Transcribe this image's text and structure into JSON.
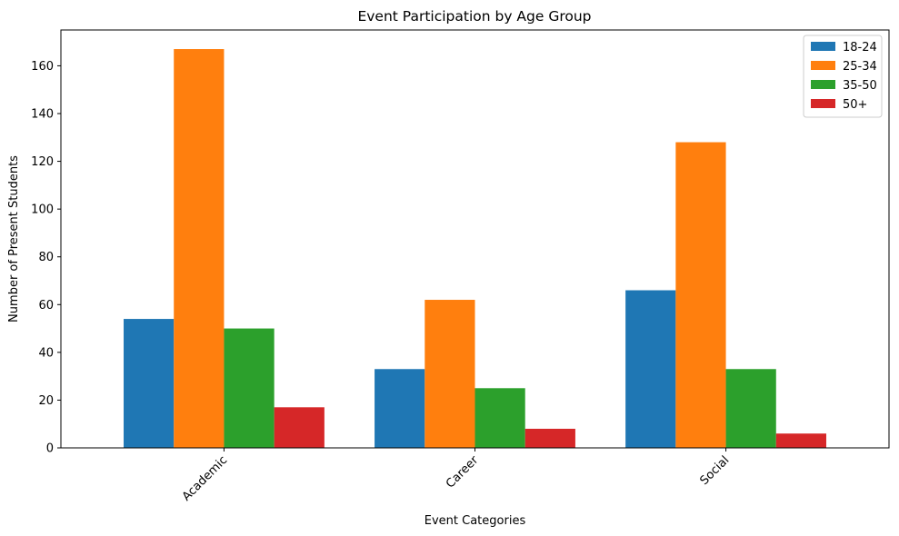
{
  "chart_data": {
    "type": "bar",
    "title": "Event Participation by Age Group",
    "xlabel": "Event Categories",
    "ylabel": "Number of Present Students",
    "categories": [
      "Academic",
      "Career",
      "Social"
    ],
    "series": [
      {
        "name": "18-24",
        "color": "#1f77b4",
        "values": [
          54,
          33,
          66
        ]
      },
      {
        "name": "25-34",
        "color": "#ff7f0e",
        "values": [
          167,
          62,
          128
        ]
      },
      {
        "name": "35-50",
        "color": "#2ca02c",
        "values": [
          50,
          25,
          33
        ]
      },
      {
        "name": "50+",
        "color": "#d62728",
        "values": [
          17,
          8,
          6
        ]
      }
    ],
    "ylim": [
      0,
      175
    ],
    "yticks": [
      0,
      20,
      40,
      60,
      80,
      100,
      120,
      140,
      160
    ],
    "grid": false,
    "legend_position": "top-right",
    "xtick_rotation_deg": 45
  }
}
